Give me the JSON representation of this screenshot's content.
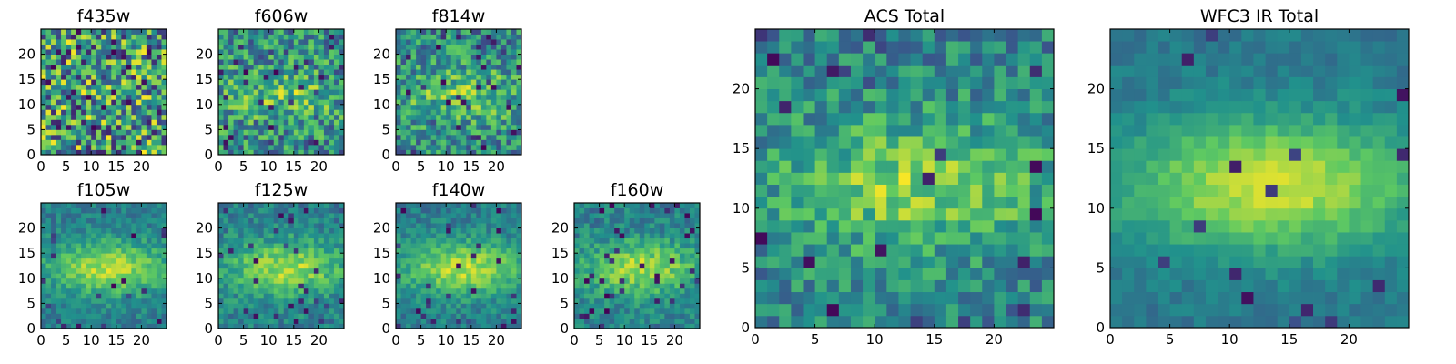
{
  "colormap": [
    "#440154",
    "#3b528b",
    "#21918c",
    "#5ec962",
    "#fde725"
  ],
  "chart_data": [
    {
      "type": "heatmap",
      "title": "f435w",
      "grid_size": 25,
      "seed": 11,
      "smooth": 0.0,
      "noise": 1.0,
      "dark_fraction": 0.06,
      "x_ticks": [
        0,
        5,
        10,
        15,
        20
      ],
      "x_tick_labels": [
        "0",
        "5",
        "10",
        "15",
        "20"
      ],
      "y_ticks": [
        0,
        5,
        10,
        15,
        20
      ],
      "y_tick_labels": [
        "0",
        "5",
        "10",
        "15",
        "20"
      ],
      "xlim": [
        0,
        25
      ],
      "ylim": [
        0,
        25
      ]
    },
    {
      "type": "heatmap",
      "title": "f606w",
      "grid_size": 25,
      "seed": 23,
      "smooth": 0.35,
      "noise": 0.8,
      "dark_fraction": 0.05,
      "x_ticks": [
        0,
        5,
        10,
        15,
        20
      ],
      "x_tick_labels": [
        "0",
        "5",
        "10",
        "15",
        "20"
      ],
      "y_ticks": [
        0,
        5,
        10,
        15,
        20
      ],
      "y_tick_labels": [
        "0",
        "5",
        "10",
        "15",
        "20"
      ],
      "xlim": [
        0,
        25
      ],
      "ylim": [
        0,
        25
      ]
    },
    {
      "type": "heatmap",
      "title": "f814w",
      "grid_size": 25,
      "seed": 37,
      "smooth": 0.4,
      "noise": 0.75,
      "dark_fraction": 0.05,
      "x_ticks": [
        0,
        5,
        10,
        15,
        20
      ],
      "x_tick_labels": [
        "0",
        "5",
        "10",
        "15",
        "20"
      ],
      "y_ticks": [
        0,
        5,
        10,
        15,
        20
      ],
      "y_tick_labels": [
        "0",
        "5",
        "10",
        "15",
        "20"
      ],
      "xlim": [
        0,
        25
      ],
      "ylim": [
        0,
        25
      ]
    },
    {
      "type": "heatmap",
      "title": "f105w",
      "grid_size": 25,
      "seed": 41,
      "smooth": 0.75,
      "noise": 0.45,
      "dark_fraction": 0.03,
      "x_ticks": [
        0,
        5,
        10,
        15,
        20
      ],
      "x_tick_labels": [
        "0",
        "5",
        "10",
        "15",
        "20"
      ],
      "y_ticks": [
        0,
        5,
        10,
        15,
        20
      ],
      "y_tick_labels": [
        "0",
        "5",
        "10",
        "15",
        "20"
      ],
      "xlim": [
        0,
        25
      ],
      "ylim": [
        0,
        25
      ]
    },
    {
      "type": "heatmap",
      "title": "f125w",
      "grid_size": 25,
      "seed": 53,
      "smooth": 0.7,
      "noise": 0.5,
      "dark_fraction": 0.04,
      "x_ticks": [
        0,
        5,
        10,
        15,
        20
      ],
      "x_tick_labels": [
        "0",
        "5",
        "10",
        "15",
        "20"
      ],
      "y_ticks": [
        0,
        5,
        10,
        15,
        20
      ],
      "y_tick_labels": [
        "0",
        "5",
        "10",
        "15",
        "20"
      ],
      "xlim": [
        0,
        25
      ],
      "ylim": [
        0,
        25
      ]
    },
    {
      "type": "heatmap",
      "title": "f140w",
      "grid_size": 25,
      "seed": 67,
      "smooth": 0.75,
      "noise": 0.45,
      "dark_fraction": 0.04,
      "x_ticks": [
        0,
        5,
        10,
        15,
        20
      ],
      "x_tick_labels": [
        "0",
        "5",
        "10",
        "15",
        "20"
      ],
      "y_ticks": [
        0,
        5,
        10,
        15,
        20
      ],
      "y_tick_labels": [
        "0",
        "5",
        "10",
        "15",
        "20"
      ],
      "xlim": [
        0,
        25
      ],
      "ylim": [
        0,
        25
      ]
    },
    {
      "type": "heatmap",
      "title": "f160w",
      "grid_size": 25,
      "seed": 79,
      "smooth": 0.7,
      "noise": 0.5,
      "dark_fraction": 0.06,
      "x_ticks": [
        0,
        5,
        10,
        15,
        20
      ],
      "x_tick_labels": [
        "0",
        "5",
        "10",
        "15",
        "20"
      ],
      "y_ticks": [
        0,
        5,
        10,
        15,
        20
      ],
      "y_tick_labels": [
        "0",
        "5",
        "10",
        "15",
        "20"
      ],
      "xlim": [
        0,
        25
      ],
      "ylim": [
        0,
        25
      ]
    },
    {
      "type": "heatmap",
      "title": "ACS Total",
      "grid_size": 25,
      "seed": 97,
      "smooth": 0.55,
      "noise": 0.6,
      "dark_fraction": 0.04,
      "x_ticks": [
        0,
        5,
        10,
        15,
        20
      ],
      "x_tick_labels": [
        "0",
        "5",
        "10",
        "15",
        "20"
      ],
      "y_ticks": [
        0,
        5,
        10,
        15,
        20
      ],
      "y_tick_labels": [
        "0",
        "5",
        "10",
        "15",
        "20"
      ],
      "xlim": [
        0,
        25
      ],
      "ylim": [
        0,
        25
      ]
    },
    {
      "type": "heatmap",
      "title": "WFC3 IR Total",
      "grid_size": 25,
      "seed": 113,
      "smooth": 0.9,
      "noise": 0.3,
      "dark_fraction": 0.02,
      "x_ticks": [
        0,
        5,
        10,
        15,
        20
      ],
      "x_tick_labels": [
        "0",
        "5",
        "10",
        "15",
        "20"
      ],
      "y_ticks": [
        0,
        5,
        10,
        15,
        20
      ],
      "y_tick_labels": [
        "0",
        "5",
        "10",
        "15",
        "20"
      ],
      "xlim": [
        0,
        25
      ],
      "ylim": [
        0,
        25
      ]
    }
  ]
}
